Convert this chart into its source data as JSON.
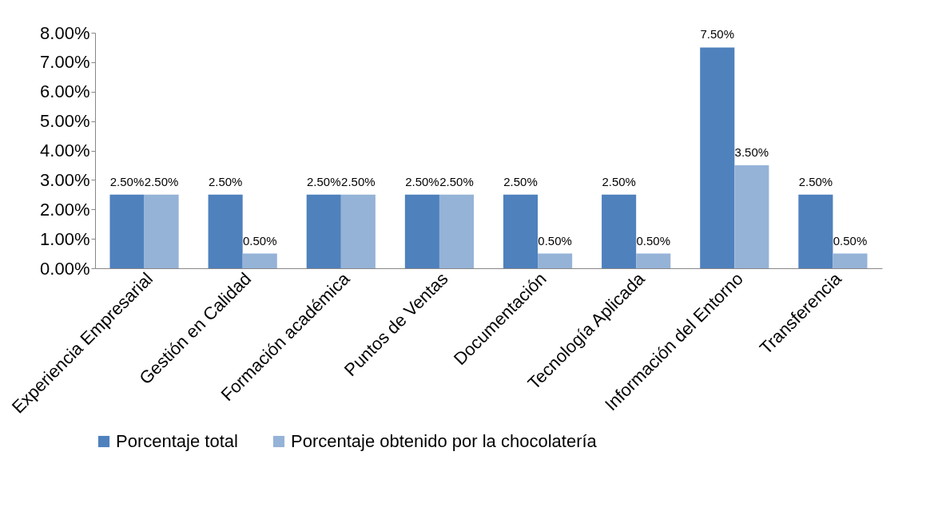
{
  "chart_data": {
    "type": "bar",
    "categories": [
      "Experiencia Empresarial",
      "Gestión en Calidad",
      "Formación académica",
      "Puntos de Ventas",
      "Documentación",
      "Tecnología Aplicada",
      "Información del Entorno",
      "Transferencia"
    ],
    "series": [
      {
        "name": "Porcentaje total",
        "color": "#4f81bd",
        "values": [
          2.5,
          2.5,
          2.5,
          2.5,
          2.5,
          2.5,
          7.5,
          2.5
        ],
        "value_labels": [
          "2.50%",
          "2.50%",
          "2.50%",
          "2.50%",
          "2.50%",
          "2.50%",
          "7.50%",
          "2.50%"
        ]
      },
      {
        "name": "Porcentaje obtenido por la chocolatería",
        "color": "#95b3d7",
        "values": [
          2.5,
          0.5,
          2.5,
          2.5,
          0.5,
          0.5,
          3.5,
          0.5
        ],
        "value_labels": [
          "2.50%",
          "0.50%",
          "2.50%",
          "2.50%",
          "0.50%",
          "0.50%",
          "3.50%",
          "0.50%"
        ]
      }
    ],
    "ylim": [
      0,
      8
    ],
    "yticks": [
      {
        "value": 0,
        "label": "0.00%"
      },
      {
        "value": 1,
        "label": "1.00%"
      },
      {
        "value": 2,
        "label": "2.00%"
      },
      {
        "value": 3,
        "label": "3.00%"
      },
      {
        "value": 4,
        "label": "4.00%"
      },
      {
        "value": 5,
        "label": "5.00%"
      },
      {
        "value": 6,
        "label": "6.00%"
      },
      {
        "value": 7,
        "label": "7.00%"
      },
      {
        "value": 8,
        "label": "8.00%"
      }
    ],
    "grid": false,
    "legend": "bottom"
  }
}
